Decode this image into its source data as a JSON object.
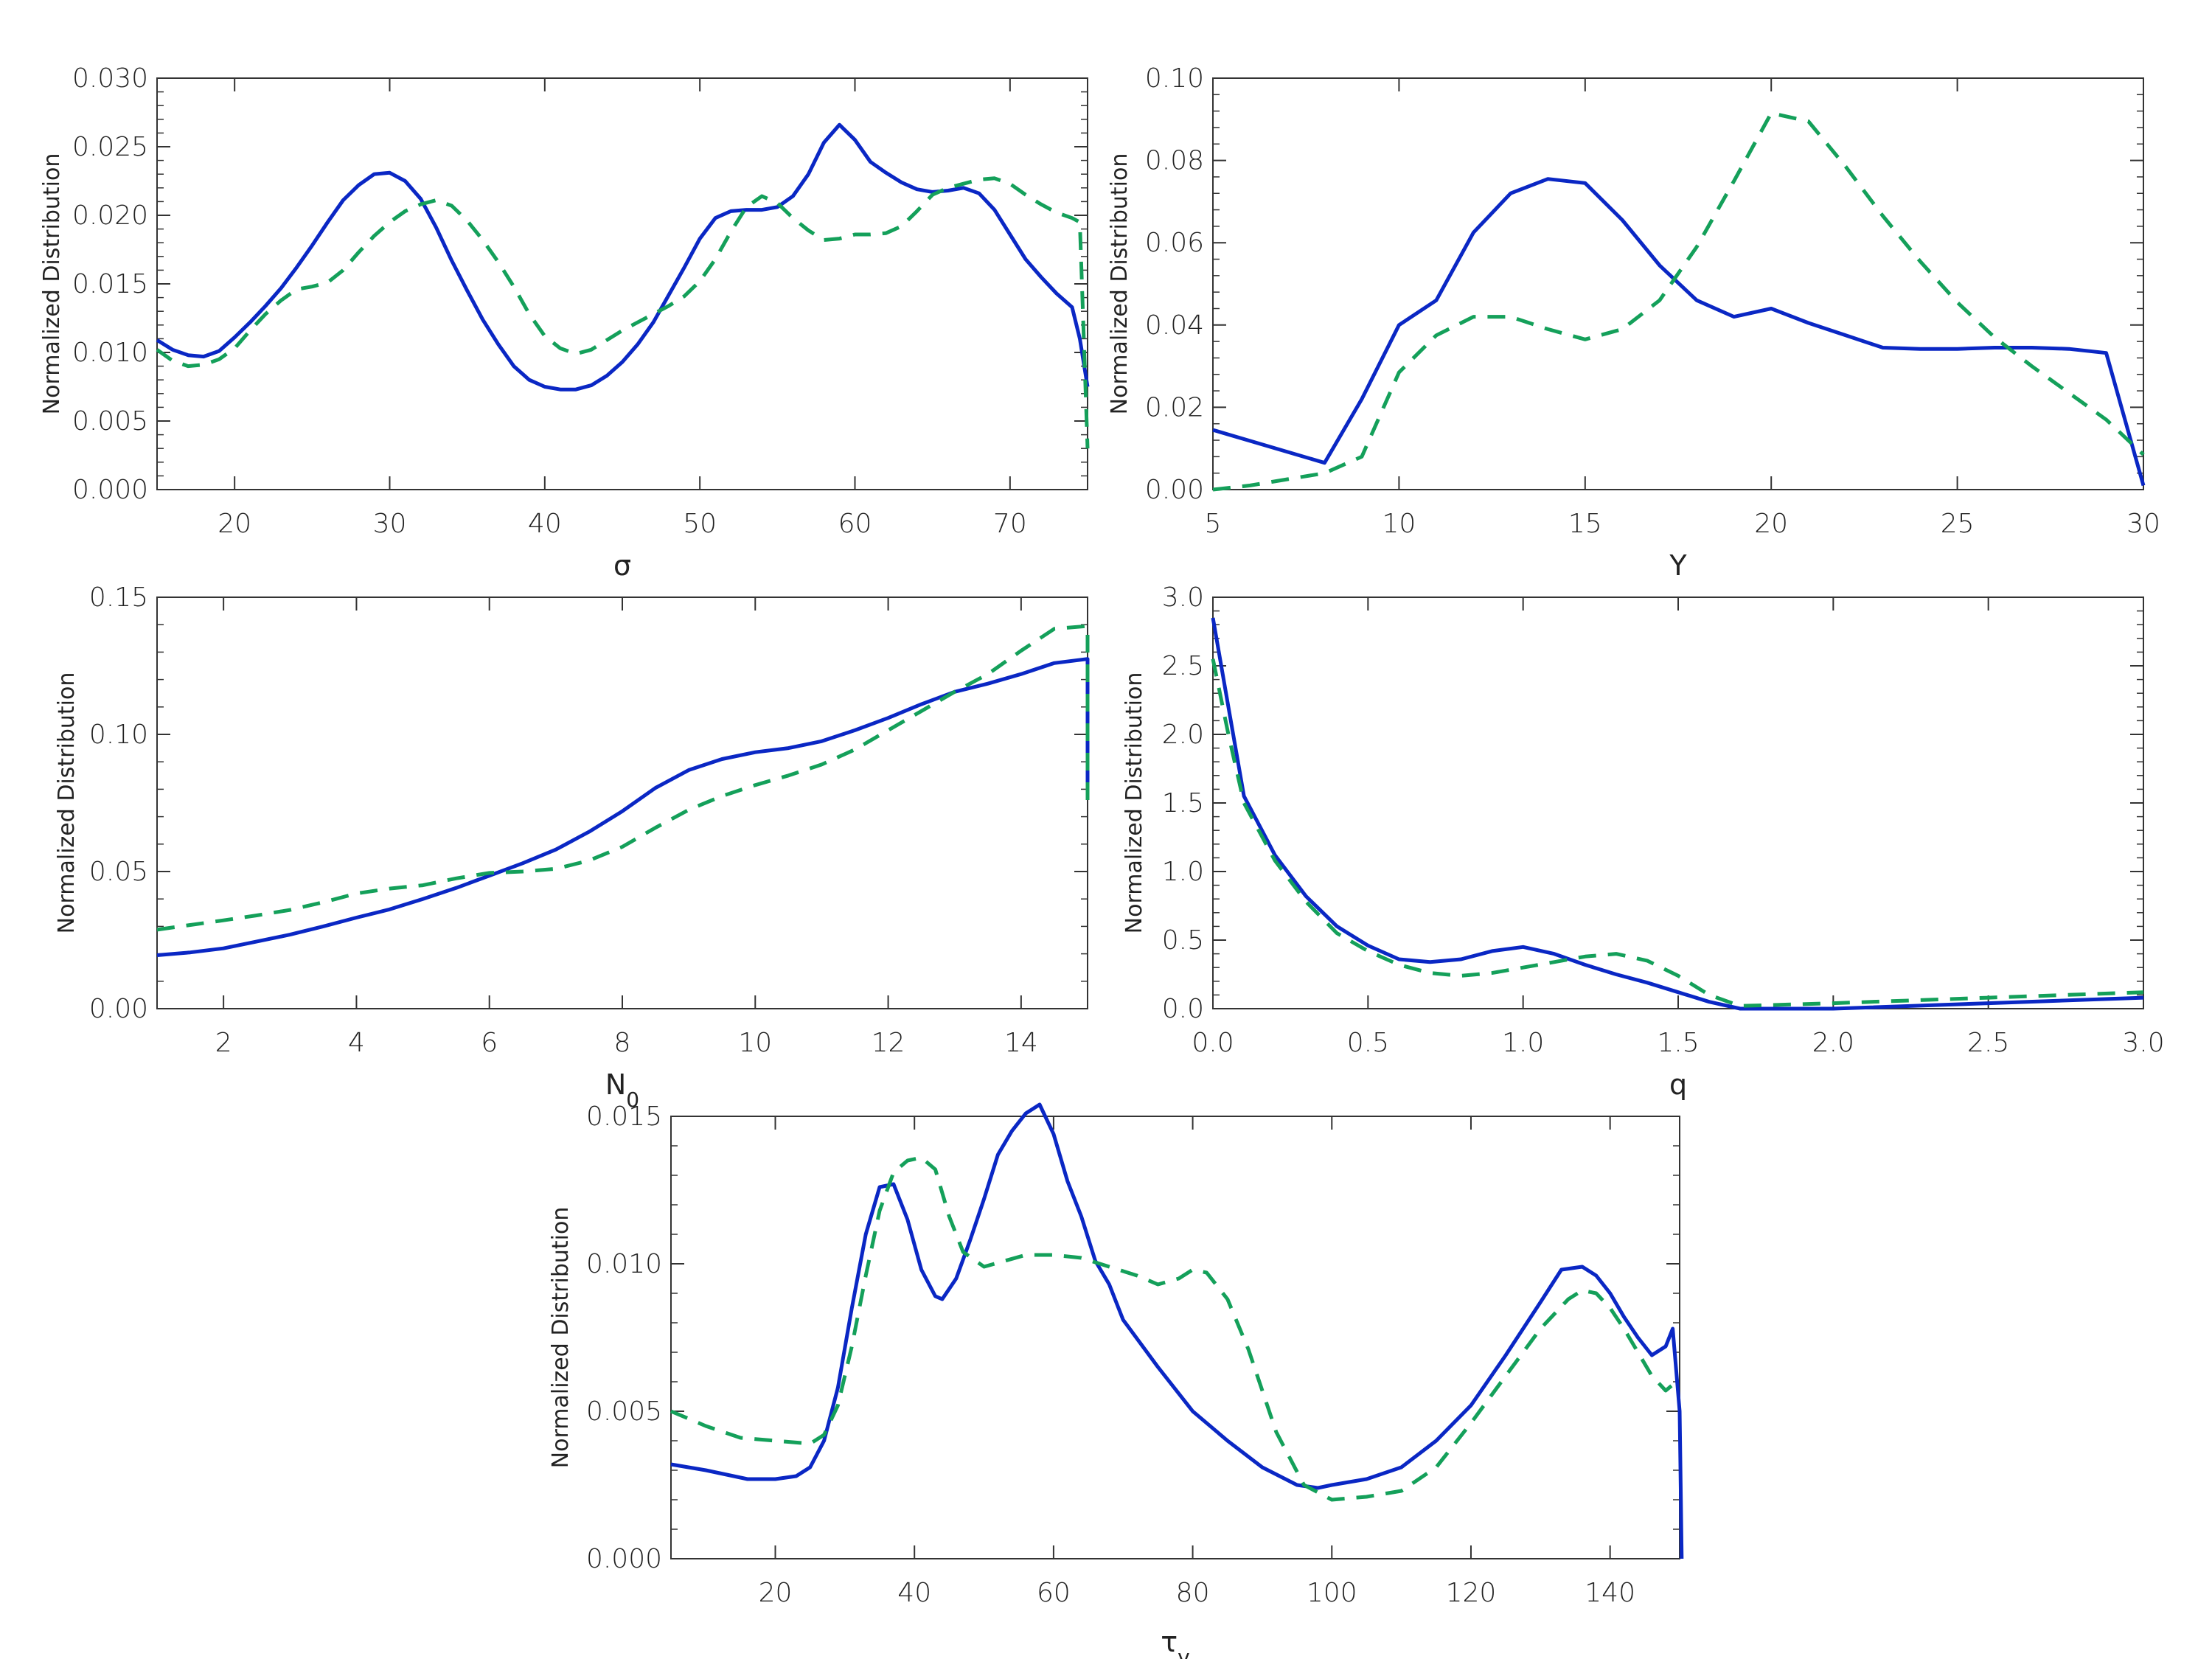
{
  "colors": {
    "series_solid": "#0a27c4",
    "series_dashed": "#14a05a",
    "axis": "#333333"
  },
  "chart_data": [
    {
      "type": "line",
      "xlabel": "σ",
      "ylabel": "Normalized Distribution",
      "xlim": [
        15,
        75
      ],
      "ylim": [
        0,
        0.03
      ],
      "xticks": [
        "20",
        "30",
        "40",
        "50",
        "60",
        "70"
      ],
      "yticks": [
        "0.000",
        "0.005",
        "0.010",
        "0.015",
        "0.020",
        "0.025",
        "0.030"
      ],
      "series": [
        {
          "style": "solid",
          "x": [
            15,
            16,
            17,
            18,
            19,
            20,
            21,
            22,
            23,
            24,
            25,
            26,
            27,
            28,
            29,
            30,
            31,
            32,
            33,
            34,
            35,
            36,
            37,
            38,
            39,
            40,
            41,
            42,
            43,
            44,
            45,
            46,
            47,
            48,
            49,
            50,
            51,
            52,
            53,
            54,
            55,
            56,
            57,
            58,
            59,
            60,
            61,
            62,
            63,
            64,
            65,
            66,
            67,
            68,
            69,
            70,
            71,
            72,
            73,
            74,
            74.5,
            75
          ],
          "y": [
            0.0109,
            0.0102,
            0.0098,
            0.0097,
            0.0101,
            0.0111,
            0.0122,
            0.0134,
            0.0147,
            0.0162,
            0.0178,
            0.0195,
            0.0211,
            0.0222,
            0.023,
            0.0231,
            0.0225,
            0.0212,
            0.0191,
            0.0167,
            0.0145,
            0.0124,
            0.0106,
            0.009,
            0.008,
            0.0075,
            0.0073,
            0.0073,
            0.0076,
            0.0083,
            0.0093,
            0.0106,
            0.0122,
            0.0142,
            0.0162,
            0.0183,
            0.0198,
            0.0203,
            0.0204,
            0.0204,
            0.0206,
            0.0214,
            0.023,
            0.0253,
            0.0266,
            0.0255,
            0.0239,
            0.0231,
            0.0224,
            0.0219,
            0.0217,
            0.0218,
            0.022,
            0.0216,
            0.0204,
            0.0186,
            0.0168,
            0.0155,
            0.0143,
            0.0133,
            0.011,
            0.0075
          ]
        },
        {
          "style": "dashed",
          "x": [
            15,
            16,
            17,
            18,
            19,
            20,
            21,
            22,
            23,
            24,
            25,
            26,
            27,
            28,
            29,
            30,
            31,
            32,
            33,
            34,
            35,
            36,
            37,
            38,
            39,
            40,
            41,
            42,
            43,
            44,
            45,
            46,
            47,
            48,
            49,
            50,
            51,
            52,
            53,
            54,
            55,
            56,
            57,
            58,
            59,
            60,
            61,
            62,
            63,
            64,
            65,
            66,
            67,
            68,
            69,
            70,
            71,
            72,
            73,
            74,
            74.5,
            75
          ],
          "y": [
            0.0102,
            0.0094,
            0.009,
            0.0091,
            0.0095,
            0.0103,
            0.0116,
            0.0128,
            0.0138,
            0.0146,
            0.0148,
            0.0151,
            0.016,
            0.0173,
            0.0185,
            0.0195,
            0.0203,
            0.0208,
            0.0211,
            0.0207,
            0.0196,
            0.0182,
            0.0166,
            0.0148,
            0.0128,
            0.0112,
            0.0103,
            0.0099,
            0.0102,
            0.0109,
            0.0116,
            0.0122,
            0.0128,
            0.0134,
            0.0141,
            0.0152,
            0.0168,
            0.0188,
            0.0206,
            0.0214,
            0.0209,
            0.0198,
            0.0189,
            0.0182,
            0.0183,
            0.0186,
            0.0186,
            0.0187,
            0.0192,
            0.0203,
            0.0215,
            0.022,
            0.0223,
            0.0226,
            0.0227,
            0.0223,
            0.0215,
            0.0208,
            0.0202,
            0.0198,
            0.0195,
            0.003
          ]
        }
      ]
    },
    {
      "type": "line",
      "xlabel": "Y",
      "ylabel": "Normalized Distribution",
      "xlim": [
        5,
        30
      ],
      "ylim": [
        0,
        0.1
      ],
      "xticks": [
        "5",
        "10",
        "15",
        "20",
        "25",
        "30"
      ],
      "yticks": [
        "0.00",
        "0.02",
        "0.04",
        "0.06",
        "0.08",
        "0.10"
      ],
      "series": [
        {
          "style": "solid",
          "x": [
            5,
            8,
            9,
            10,
            11,
            12,
            13,
            14,
            15,
            16,
            17,
            18,
            19,
            20,
            21,
            22,
            23,
            24,
            25,
            26,
            27,
            28,
            29,
            30
          ],
          "y": [
            0.0145,
            0.0065,
            0.022,
            0.04,
            0.046,
            0.0625,
            0.072,
            0.0755,
            0.0745,
            0.0655,
            0.0545,
            0.046,
            0.042,
            0.044,
            0.0405,
            0.0375,
            0.0345,
            0.0342,
            0.0342,
            0.0345,
            0.0345,
            0.0342,
            0.0332,
            0.001
          ]
        },
        {
          "style": "dashed",
          "x": [
            5,
            6,
            7,
            8,
            9,
            10,
            11,
            12,
            13,
            14,
            15,
            16,
            17,
            18,
            19,
            20,
            21,
            22,
            23,
            24,
            25,
            26,
            27,
            28,
            29,
            30
          ],
          "y": [
            0.0,
            0.001,
            0.0025,
            0.004,
            0.008,
            0.0285,
            0.0375,
            0.042,
            0.042,
            0.039,
            0.0365,
            0.039,
            0.046,
            0.059,
            0.075,
            0.0915,
            0.0895,
            0.0785,
            0.0665,
            0.0555,
            0.0455,
            0.037,
            0.03,
            0.0235,
            0.017,
            0.0085
          ]
        }
      ]
    },
    {
      "type": "line",
      "xlabel": "N",
      "xlabel_sub": "0",
      "ylabel": "Normalized Distribution",
      "xlim": [
        1,
        15
      ],
      "ylim": [
        0,
        0.15
      ],
      "xticks": [
        "2",
        "4",
        "6",
        "8",
        "10",
        "12",
        "14"
      ],
      "yticks": [
        "0.00",
        "0.05",
        "0.10",
        "0.15"
      ],
      "series": [
        {
          "style": "solid",
          "x": [
            1,
            1.5,
            2,
            2.5,
            3,
            3.5,
            4,
            4.5,
            5,
            5.5,
            6,
            6.5,
            7,
            7.5,
            8,
            8.5,
            9,
            9.5,
            10,
            10.5,
            11,
            11.5,
            12,
            12.5,
            13,
            13.5,
            14,
            14.5,
            15,
            15
          ],
          "y": [
            0.0195,
            0.0205,
            0.022,
            0.0245,
            0.027,
            0.03,
            0.0332,
            0.0362,
            0.04,
            0.044,
            0.0485,
            0.053,
            0.058,
            0.0645,
            0.072,
            0.0805,
            0.087,
            0.091,
            0.0935,
            0.095,
            0.0975,
            0.1015,
            0.106,
            0.111,
            0.1155,
            0.1185,
            0.122,
            0.126,
            0.1275,
            0.078
          ]
        },
        {
          "style": "dashed",
          "x": [
            1,
            1.5,
            2,
            2.5,
            3,
            3.5,
            4,
            4.5,
            5,
            5.5,
            6,
            6.5,
            7,
            7.5,
            8,
            8.5,
            9,
            9.5,
            10,
            10.5,
            11,
            11.5,
            12,
            12.5,
            13,
            13.5,
            14,
            14.5,
            15,
            15
          ],
          "y": [
            0.0288,
            0.0305,
            0.0322,
            0.034,
            0.036,
            0.0388,
            0.042,
            0.0438,
            0.045,
            0.0475,
            0.0495,
            0.05,
            0.051,
            0.054,
            0.059,
            0.066,
            0.0725,
            0.0775,
            0.0815,
            0.085,
            0.089,
            0.0945,
            0.1015,
            0.1085,
            0.1155,
            0.122,
            0.1305,
            0.1385,
            0.1395,
            0.072
          ]
        }
      ]
    },
    {
      "type": "line",
      "xlabel": "q",
      "ylabel": "Normalized Distribution",
      "xlim": [
        0,
        3
      ],
      "ylim": [
        0,
        3
      ],
      "xticks": [
        "0.0",
        "0.5",
        "1.0",
        "1.5",
        "2.0",
        "2.5",
        "3.0"
      ],
      "yticks": [
        "0.0",
        "0.5",
        "1.0",
        "1.5",
        "2.0",
        "2.5",
        "3.0"
      ],
      "series": [
        {
          "style": "solid",
          "x": [
            0,
            0.05,
            0.1,
            0.2,
            0.3,
            0.4,
            0.5,
            0.6,
            0.7,
            0.8,
            0.9,
            1.0,
            1.1,
            1.2,
            1.3,
            1.4,
            1.5,
            1.6,
            1.7,
            2.0,
            2.5,
            3.0
          ],
          "y": [
            2.85,
            2.2,
            1.55,
            1.12,
            0.82,
            0.6,
            0.46,
            0.36,
            0.34,
            0.36,
            0.42,
            0.45,
            0.4,
            0.32,
            0.25,
            0.19,
            0.12,
            0.05,
            0.0,
            0.0,
            0.04,
            0.08
          ]
        },
        {
          "style": "dashed",
          "x": [
            0,
            0.05,
            0.1,
            0.2,
            0.3,
            0.4,
            0.5,
            0.6,
            0.7,
            0.8,
            0.9,
            1.0,
            1.1,
            1.2,
            1.3,
            1.4,
            1.5,
            1.6,
            1.7,
            2.0,
            2.5,
            3.0
          ],
          "y": [
            2.55,
            2.0,
            1.5,
            1.08,
            0.78,
            0.55,
            0.42,
            0.32,
            0.26,
            0.24,
            0.26,
            0.3,
            0.34,
            0.38,
            0.4,
            0.35,
            0.24,
            0.1,
            0.02,
            0.04,
            0.08,
            0.12
          ]
        }
      ]
    },
    {
      "type": "line",
      "xlabel": "τ",
      "xlabel_sub": "v",
      "ylabel": "Normalized Distribution",
      "xlim": [
        5,
        150
      ],
      "ylim": [
        0,
        0.015
      ],
      "xticks": [
        "20",
        "40",
        "60",
        "80",
        "100",
        "120",
        "140"
      ],
      "yticks": [
        "0.000",
        "0.005",
        "0.010",
        "0.015"
      ],
      "series": [
        {
          "style": "solid",
          "x": [
            5,
            10,
            16,
            20,
            23,
            25,
            27,
            29,
            31,
            33,
            35,
            37,
            39,
            41,
            43,
            44,
            46,
            48,
            50,
            52,
            54,
            56,
            58,
            60,
            62,
            64,
            66,
            68,
            70,
            75,
            80,
            85,
            90,
            95,
            98,
            100,
            105,
            110,
            115,
            120,
            125,
            130,
            133,
            136,
            138,
            140,
            142,
            144,
            146,
            148,
            149,
            150,
            150.3
          ],
          "y": [
            0.0032,
            0.003,
            0.0027,
            0.0027,
            0.0028,
            0.0031,
            0.004,
            0.0058,
            0.0085,
            0.011,
            0.0126,
            0.0127,
            0.0115,
            0.0098,
            0.0089,
            0.0088,
            0.0095,
            0.0108,
            0.0122,
            0.0137,
            0.0145,
            0.0151,
            0.0154,
            0.0144,
            0.0128,
            0.0116,
            0.0101,
            0.0093,
            0.0081,
            0.0065,
            0.005,
            0.004,
            0.0031,
            0.0025,
            0.0024,
            0.0025,
            0.0027,
            0.0031,
            0.004,
            0.0052,
            0.0069,
            0.0087,
            0.0098,
            0.0099,
            0.0096,
            0.009,
            0.0082,
            0.0075,
            0.0069,
            0.0072,
            0.0078,
            0.005,
            0.0
          ]
        },
        {
          "style": "dashed",
          "x": [
            5,
            10,
            15,
            20,
            25,
            27,
            29,
            31,
            33,
            35,
            37,
            39,
            41,
            43,
            45,
            47,
            50,
            53,
            56,
            60,
            64,
            68,
            72,
            75,
            78,
            80,
            82,
            85,
            88,
            92,
            96,
            100,
            105,
            110,
            115,
            120,
            125,
            130,
            134,
            136,
            138,
            140,
            142,
            144,
            146,
            148,
            149,
            150
          ],
          "y": [
            0.005,
            0.0045,
            0.0041,
            0.004,
            0.0039,
            0.0042,
            0.0052,
            0.0072,
            0.0096,
            0.0118,
            0.0131,
            0.0135,
            0.0136,
            0.0132,
            0.0116,
            0.0104,
            0.0099,
            0.0101,
            0.0103,
            0.0103,
            0.0102,
            0.0099,
            0.0096,
            0.0093,
            0.0095,
            0.0098,
            0.0097,
            0.0088,
            0.0071,
            0.0043,
            0.0025,
            0.002,
            0.0021,
            0.0023,
            0.0031,
            0.0046,
            0.0062,
            0.0078,
            0.0088,
            0.0091,
            0.009,
            0.0085,
            0.0078,
            0.007,
            0.0062,
            0.0057,
            0.0059,
            0.006
          ]
        }
      ]
    }
  ]
}
